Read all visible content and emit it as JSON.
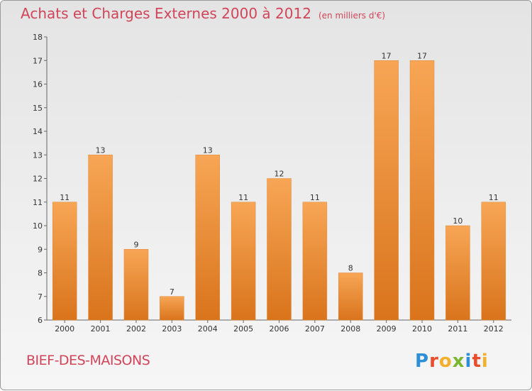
{
  "title": "Achats et Charges Externes 2000 à 2012",
  "unit_note": "(en milliers d'€)",
  "location": "BIEF-DES-MAISONS",
  "brand": "Proxiti",
  "colors": {
    "title": "#d1455a",
    "bar_top": "#f7a655",
    "bar_bottom": "#d9741c"
  },
  "chart_data": {
    "type": "bar",
    "categories": [
      "2000",
      "2001",
      "2002",
      "2003",
      "2004",
      "2005",
      "2006",
      "2007",
      "2008",
      "2009",
      "2010",
      "2011",
      "2012"
    ],
    "values": [
      11,
      13,
      9,
      7,
      13,
      11,
      12,
      11,
      8,
      17,
      17,
      10,
      11
    ],
    "ylim": [
      6,
      18
    ],
    "yticks": [
      6,
      7,
      8,
      9,
      10,
      11,
      12,
      13,
      14,
      15,
      16,
      17,
      18
    ],
    "grid": false,
    "legend": "none"
  }
}
